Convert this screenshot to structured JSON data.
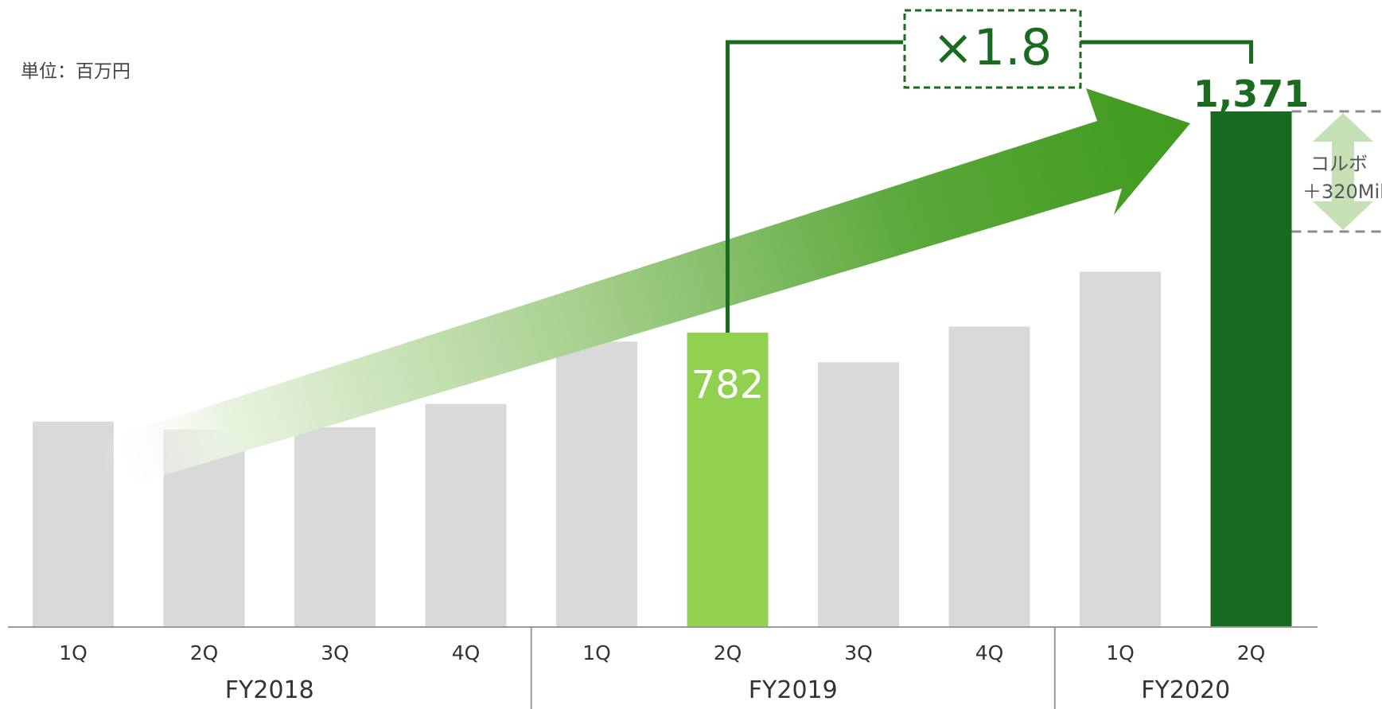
{
  "unit_label": "単位：百万円",
  "colors": {
    "bar_default": "#d9d9d9",
    "bar_highlight": "#92d050",
    "bar_peak": "#186a20",
    "accent_dark": "#1a6b1f",
    "arrow_light": "#c5e0b4"
  },
  "chart_data": {
    "type": "bar",
    "title": "",
    "xlabel": "",
    "ylabel": "",
    "categories": [
      "1Q",
      "2Q",
      "3Q",
      "4Q",
      "1Q",
      "2Q",
      "3Q",
      "4Q",
      "1Q",
      "2Q"
    ],
    "groups": [
      {
        "label": "FY2018",
        "count": 4
      },
      {
        "label": "FY2019",
        "count": 4
      },
      {
        "label": "FY2020",
        "count": 2
      }
    ],
    "values": [
      545,
      524,
      530,
      592,
      758,
      782,
      703,
      798,
      944,
      1371
    ],
    "highlight_index": 5,
    "peak_index": 9,
    "ylim": [
      0,
      1371
    ],
    "grid": false,
    "annotations": {
      "highlight_label": "782",
      "peak_label": "1,371",
      "multiplier": "×1.8",
      "side_note_line1": "コルボ",
      "side_note_line2": "＋320Mil",
      "side_note_value": 320
    }
  }
}
